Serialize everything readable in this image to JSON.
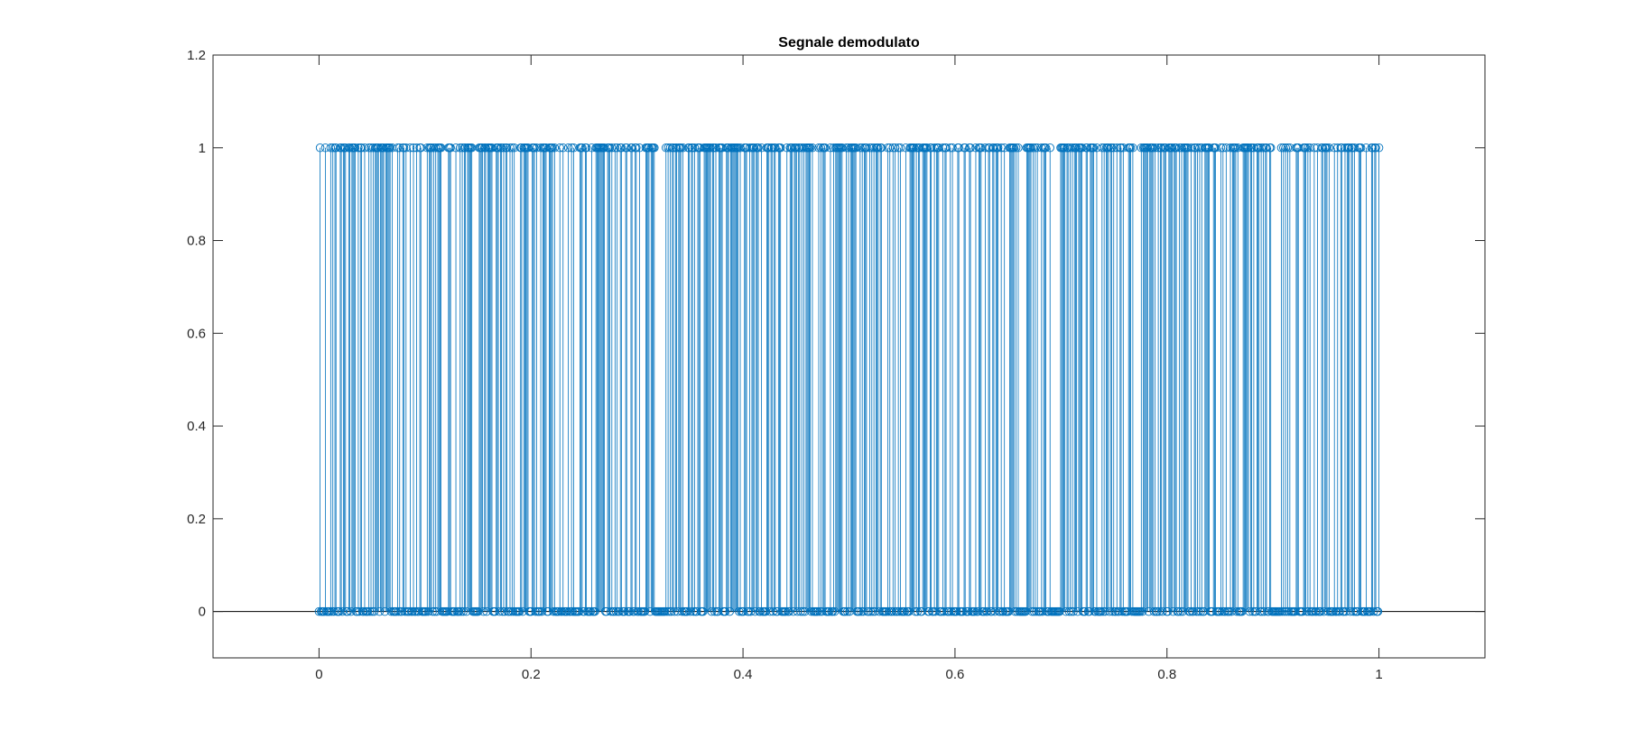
{
  "chart_data": {
    "type": "stem",
    "title": "Segnale demodulato",
    "xlabel": "",
    "ylabel": "",
    "xlim": [
      -0.1,
      1.1
    ],
    "ylim": [
      -0.1,
      1.2
    ],
    "xticks": [
      0,
      0.2,
      0.4,
      0.6,
      0.8,
      1
    ],
    "xtick_labels": [
      "0",
      "0.2",
      "0.4",
      "0.6",
      "0.8",
      "1"
    ],
    "yticks": [
      0,
      0.2,
      0.4,
      0.6,
      0.8,
      1,
      1.2
    ],
    "ytick_labels": [
      "0",
      "0.2",
      "0.4",
      "0.6",
      "0.8",
      "1",
      "1.2"
    ],
    "grid": false,
    "baseline": 0,
    "marker": "circle",
    "color": "#0072BD",
    "samples": 1000,
    "x_start": 0,
    "x_end": 1,
    "values": "1000 binary samples (0 or 1), approximately half equal to 1, spread uniformly over [0, 1]"
  }
}
